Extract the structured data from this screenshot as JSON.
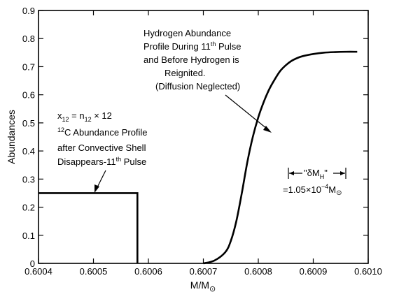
{
  "chart_data": {
    "type": "line",
    "xlabel": "M/M⊙",
    "ylabel": "Abundances",
    "xlim": [
      0.6004,
      0.601
    ],
    "ylim": [
      0,
      0.9
    ],
    "x_ticks": [
      "0.6004",
      "0.6005",
      "0.6006",
      "0.6007",
      "0.6008",
      "0.6009",
      "0.6010"
    ],
    "y_ticks": [
      "0",
      "0.1",
      "0.2",
      "0.3",
      "0.4",
      "0.5",
      "0.6",
      "0.7",
      "0.8",
      "0.9"
    ],
    "grid": false,
    "series": [
      {
        "x": [
          0.6004,
          0.60058,
          0.60058
        ],
        "y": [
          0.25,
          0.25,
          0.0
        ]
      },
      {
        "x": [
          0.6007,
          0.60072,
          0.60074,
          0.60075,
          0.60076,
          0.60077,
          0.60078,
          0.60079,
          0.6008,
          0.60081,
          0.60082,
          0.60083,
          0.60084,
          0.60085,
          0.60086,
          0.60087,
          0.60088,
          0.6009,
          0.60092,
          0.60094,
          0.60096,
          0.60098
        ],
        "y": [
          0.0,
          0.01,
          0.04,
          0.08,
          0.15,
          0.25,
          0.36,
          0.45,
          0.52,
          0.575,
          0.62,
          0.655,
          0.685,
          0.705,
          0.72,
          0.73,
          0.737,
          0.745,
          0.75,
          0.752,
          0.753,
          0.753
        ]
      }
    ],
    "annotations": {
      "hydrogen": [
        "Hydrogen Abundance",
        "Profile During 11th Pulse",
        "and Before Hydrogen is",
        "Reignited.",
        "(Diffusion Neglected)"
      ],
      "carbon": [
        "x12 = n12 × 12",
        "12C Abundance Profile",
        "after Convective Shell",
        "Disappears-11th Pulse"
      ],
      "delta_label": "\"δMH\"",
      "delta_value": "=1.05×10⁻⁴M⊙"
    }
  }
}
